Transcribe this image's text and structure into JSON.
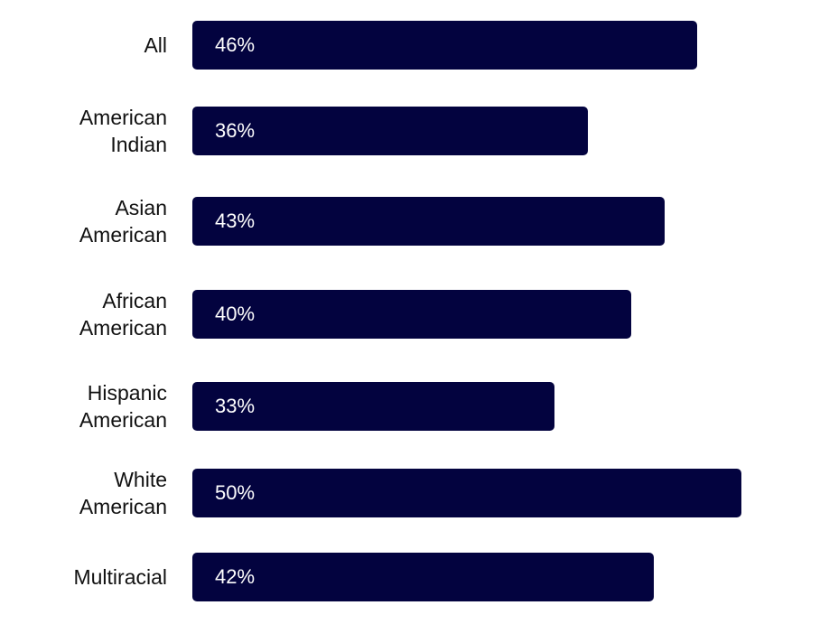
{
  "chart_data": {
    "type": "bar",
    "orientation": "horizontal",
    "categories": [
      "All",
      "American\nIndian",
      "Asian\nAmerican",
      "African\nAmerican",
      "Hispanic\nAmerican",
      "White\nAmerican",
      "Multiracial"
    ],
    "values": [
      46,
      36,
      43,
      40,
      33,
      50,
      42
    ],
    "value_labels": [
      "46%",
      "36%",
      "43%",
      "40%",
      "33%",
      "50%",
      "42%"
    ],
    "xlim": [
      0,
      50
    ],
    "grid": false,
    "legend": "none",
    "bar_color": "#03033f",
    "title": "",
    "xlabel": "",
    "ylabel": ""
  }
}
